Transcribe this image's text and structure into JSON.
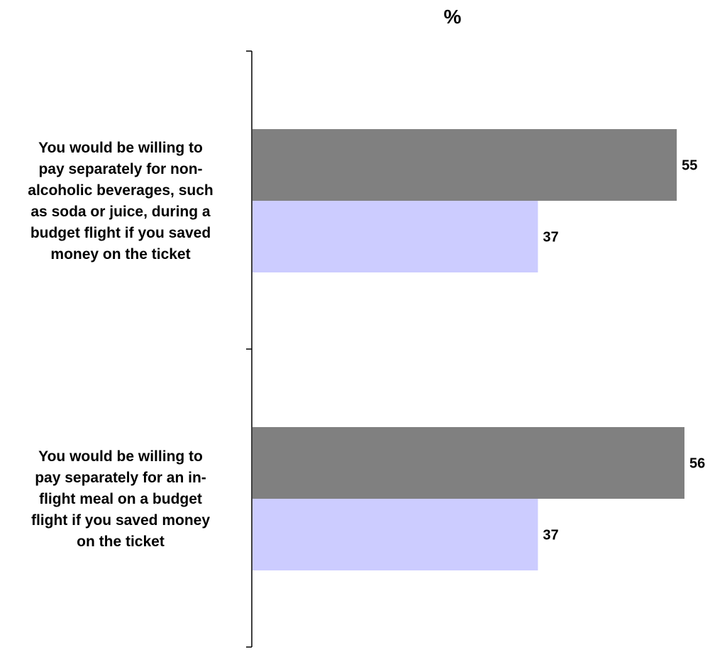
{
  "chart_data": {
    "type": "bar",
    "orientation": "horizontal",
    "title": "%",
    "categories": [
      "You would be willing to pay separately for non-alcoholic beverages, such as soda or juice, during a budget flight if you saved money on the ticket",
      "You would be willing to pay separately for an in-flight meal on a budget flight if you saved money on the ticket"
    ],
    "category_lines": [
      [
        "You would be willing to",
        "pay separately for non-",
        "alcoholic beverages, such",
        "as soda or juice, during a",
        "budget flight if you saved",
        "money on the ticket"
      ],
      [
        "You would be willing to",
        "pay separately for an in-",
        "flight meal on a budget",
        "flight if you saved money",
        "on the ticket"
      ]
    ],
    "series": [
      {
        "values": [
          55,
          56
        ],
        "color": "#808080"
      },
      {
        "values": [
          37,
          37
        ],
        "color": "#ccccff"
      }
    ],
    "data_labels": [
      [
        "55",
        "56"
      ],
      [
        "37",
        "37"
      ]
    ],
    "xlim": [
      0,
      56
    ],
    "grid": false,
    "legend": "none"
  }
}
